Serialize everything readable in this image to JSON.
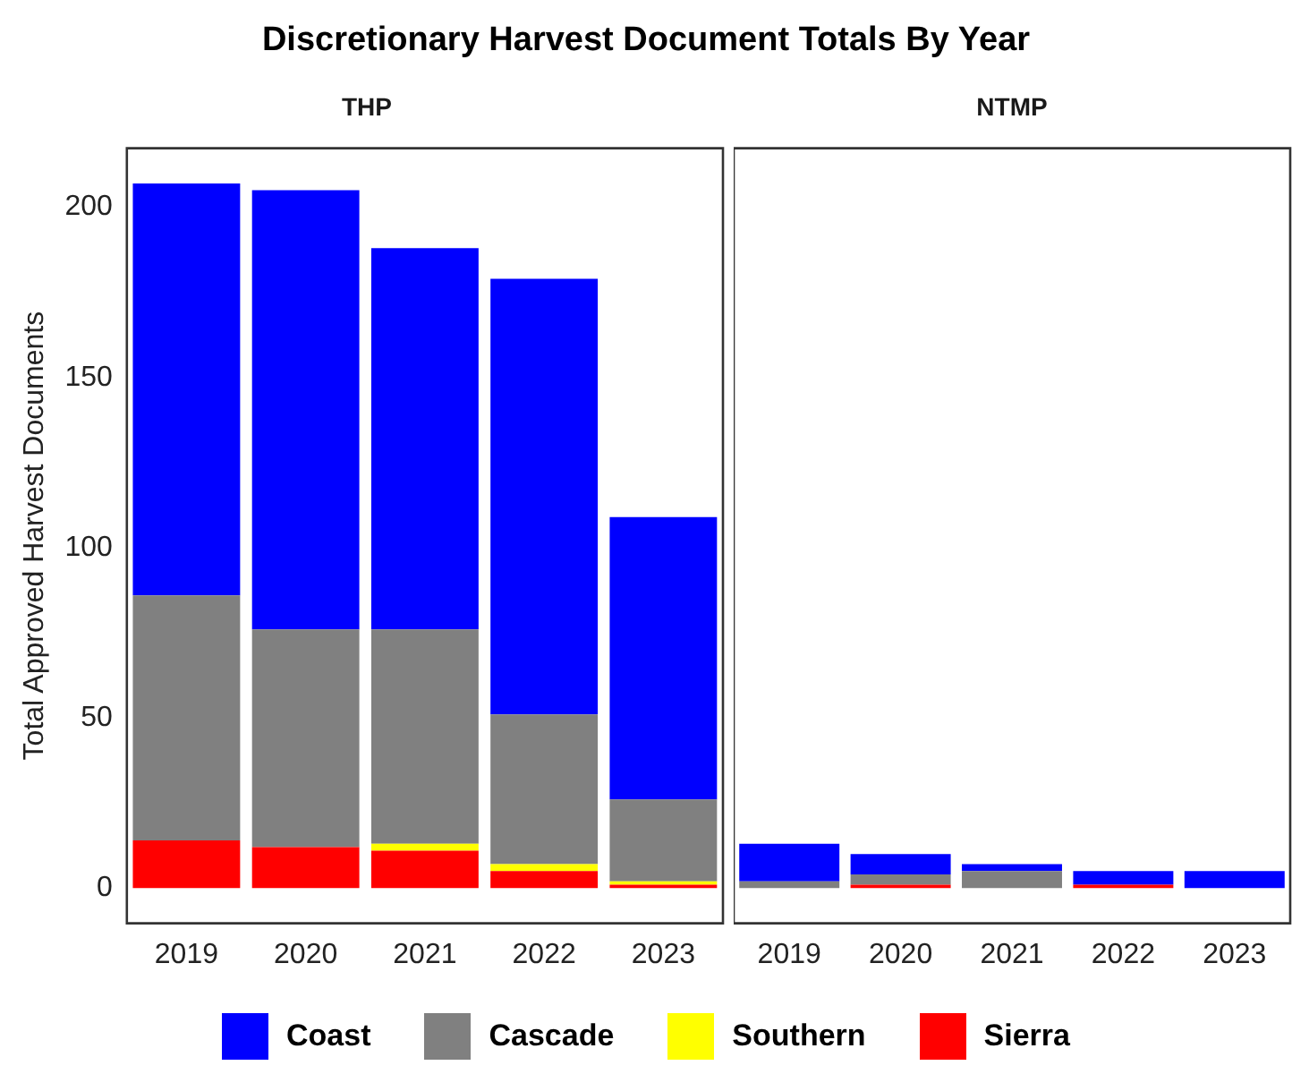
{
  "chart_data": [
    {
      "type": "bar",
      "title": "Discretionary Harvest Document Totals By Year",
      "subtitle": "THP",
      "ylabel": "Total Approved Harvest Documents",
      "categories": [
        "2019",
        "2020",
        "2021",
        "2022",
        "2023"
      ],
      "stacked": true,
      "ylim": [
        -10.35,
        217.35
      ],
      "yticks": [
        0,
        50,
        100,
        150,
        200
      ],
      "grid": false,
      "legend": "bottom",
      "series": [
        {
          "name": "Sierra",
          "color": "#ff0000",
          "values": [
            14,
            12,
            11,
            5,
            1
          ]
        },
        {
          "name": "Southern",
          "color": "#ffff00",
          "values": [
            0,
            0,
            2,
            2,
            1
          ]
        },
        {
          "name": "Cascade",
          "color": "#808080",
          "values": [
            72,
            64,
            63,
            44,
            24
          ]
        },
        {
          "name": "Coast",
          "color": "#0000ff",
          "values": [
            121,
            129,
            112,
            128,
            83
          ]
        }
      ]
    },
    {
      "type": "bar",
      "subtitle": "NTMP",
      "categories": [
        "2019",
        "2020",
        "2021",
        "2022",
        "2023"
      ],
      "stacked": true,
      "ylim": [
        -10.35,
        217.35
      ],
      "yticks": [
        0,
        50,
        100,
        150,
        200
      ],
      "grid": false,
      "tick_labels": "x",
      "series": [
        {
          "color": "#ff0000",
          "values": [
            0,
            1,
            0,
            1,
            0
          ]
        },
        {
          "color": "#ffff00",
          "values": [
            0,
            0,
            0,
            0,
            0
          ]
        },
        {
          "color": "#808080",
          "values": [
            2,
            3,
            5,
            0,
            0
          ]
        },
        {
          "color": "#0000ff",
          "values": [
            11,
            6,
            2,
            4,
            5
          ]
        }
      ]
    }
  ]
}
